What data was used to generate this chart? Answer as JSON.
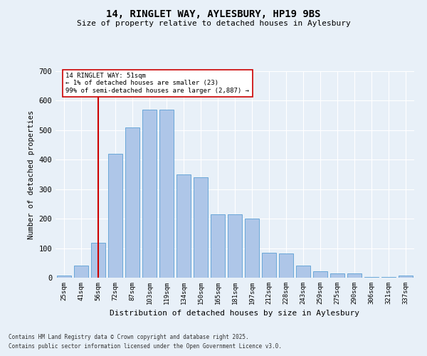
{
  "title1": "14, RINGLET WAY, AYLESBURY, HP19 9BS",
  "title2": "Size of property relative to detached houses in Aylesbury",
  "xlabel": "Distribution of detached houses by size in Aylesbury",
  "ylabel": "Number of detached properties",
  "categories": [
    "25sqm",
    "41sqm",
    "56sqm",
    "72sqm",
    "87sqm",
    "103sqm",
    "119sqm",
    "134sqm",
    "150sqm",
    "165sqm",
    "181sqm",
    "197sqm",
    "212sqm",
    "228sqm",
    "243sqm",
    "259sqm",
    "275sqm",
    "290sqm",
    "306sqm",
    "321sqm",
    "337sqm"
  ],
  "values": [
    8,
    40,
    118,
    420,
    510,
    570,
    570,
    350,
    340,
    215,
    215,
    200,
    85,
    83,
    40,
    22,
    15,
    15,
    3,
    2,
    8
  ],
  "bar_color": "#aec6e8",
  "bar_edge_color": "#5a9fd4",
  "bg_color": "#e8f0f8",
  "vline_x_index": 2,
  "vline_color": "#cc0000",
  "annotation_text": "14 RINGLET WAY: 51sqm\n← 1% of detached houses are smaller (23)\n99% of semi-detached houses are larger (2,887) →",
  "annotation_box_color": "#ffffff",
  "annotation_box_edge": "#cc0000",
  "ylim": [
    0,
    700
  ],
  "yticks": [
    0,
    100,
    200,
    300,
    400,
    500,
    600,
    700
  ],
  "footer1": "Contains HM Land Registry data © Crown copyright and database right 2025.",
  "footer2": "Contains public sector information licensed under the Open Government Licence v3.0."
}
